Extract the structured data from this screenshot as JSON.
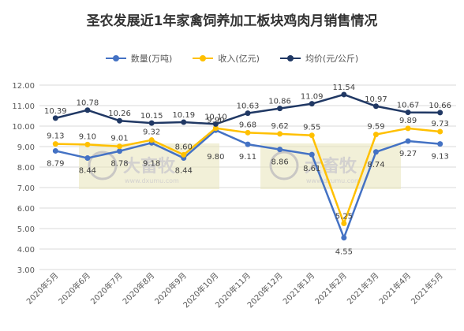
{
  "chart_data": {
    "type": "line",
    "title": "圣农发展近1年家禽饲养加工板块鸡肉月销售情况",
    "categories": [
      "2020年5月",
      "2020年6月",
      "2020年7月",
      "2020年8月",
      "2020年9月",
      "2020年10月",
      "2020年11月",
      "2020年12月",
      "2021年1月",
      "2021年2月",
      "2021年3月",
      "2021年4月",
      "2021年5月"
    ],
    "ylim": [
      3.0,
      12.0
    ],
    "yticks": [
      "3.00",
      "4.00",
      "5.00",
      "6.00",
      "7.00",
      "8.00",
      "9.00",
      "10.00",
      "11.00",
      "12.00"
    ],
    "grid": true,
    "legend_position": "top",
    "series": [
      {
        "name": "数量(万吨)",
        "color": "#4472C4",
        "values": [
          8.79,
          8.44,
          8.78,
          9.18,
          8.44,
          9.8,
          9.11,
          8.86,
          8.61,
          4.55,
          8.74,
          9.27,
          9.13
        ]
      },
      {
        "name": "收入(亿元)",
        "color": "#FFC000",
        "values": [
          9.13,
          9.1,
          9.01,
          9.32,
          8.6,
          9.9,
          9.68,
          9.62,
          9.55,
          5.25,
          9.59,
          9.89,
          9.73
        ]
      },
      {
        "name": "均价(元/公斤)",
        "color": "#203864",
        "values": [
          10.39,
          10.78,
          10.26,
          10.15,
          10.19,
          10.1,
          10.63,
          10.86,
          11.09,
          11.54,
          10.97,
          10.67,
          10.66
        ]
      }
    ],
    "data_labels": {
      "数量(万吨)": [
        "8.79",
        "8.44",
        "8.78",
        "9.18",
        "8.44",
        "9.80",
        "9.11",
        "8.86",
        "8.61",
        "4.55",
        "8.74",
        "9.27",
        "9.13"
      ],
      "收入(亿元)": [
        "9.13",
        "9.10",
        "9.01",
        "9.32",
        "8.60",
        "9.90",
        "9.68",
        "9.62",
        "9.55",
        "5.25",
        "9.59",
        "9.89",
        "9.73"
      ],
      "均价(元/公斤)": [
        "10.39",
        "10.78",
        "10.26",
        "10.15",
        "10.19",
        "10.10",
        "10.63",
        "10.86",
        "11.09",
        "11.54",
        "10.97",
        "10.67",
        "10.66"
      ]
    }
  },
  "watermark": {
    "text": "大畜牧",
    "subtext": "www.dxumu.com",
    "color": "#E8E3B8"
  }
}
